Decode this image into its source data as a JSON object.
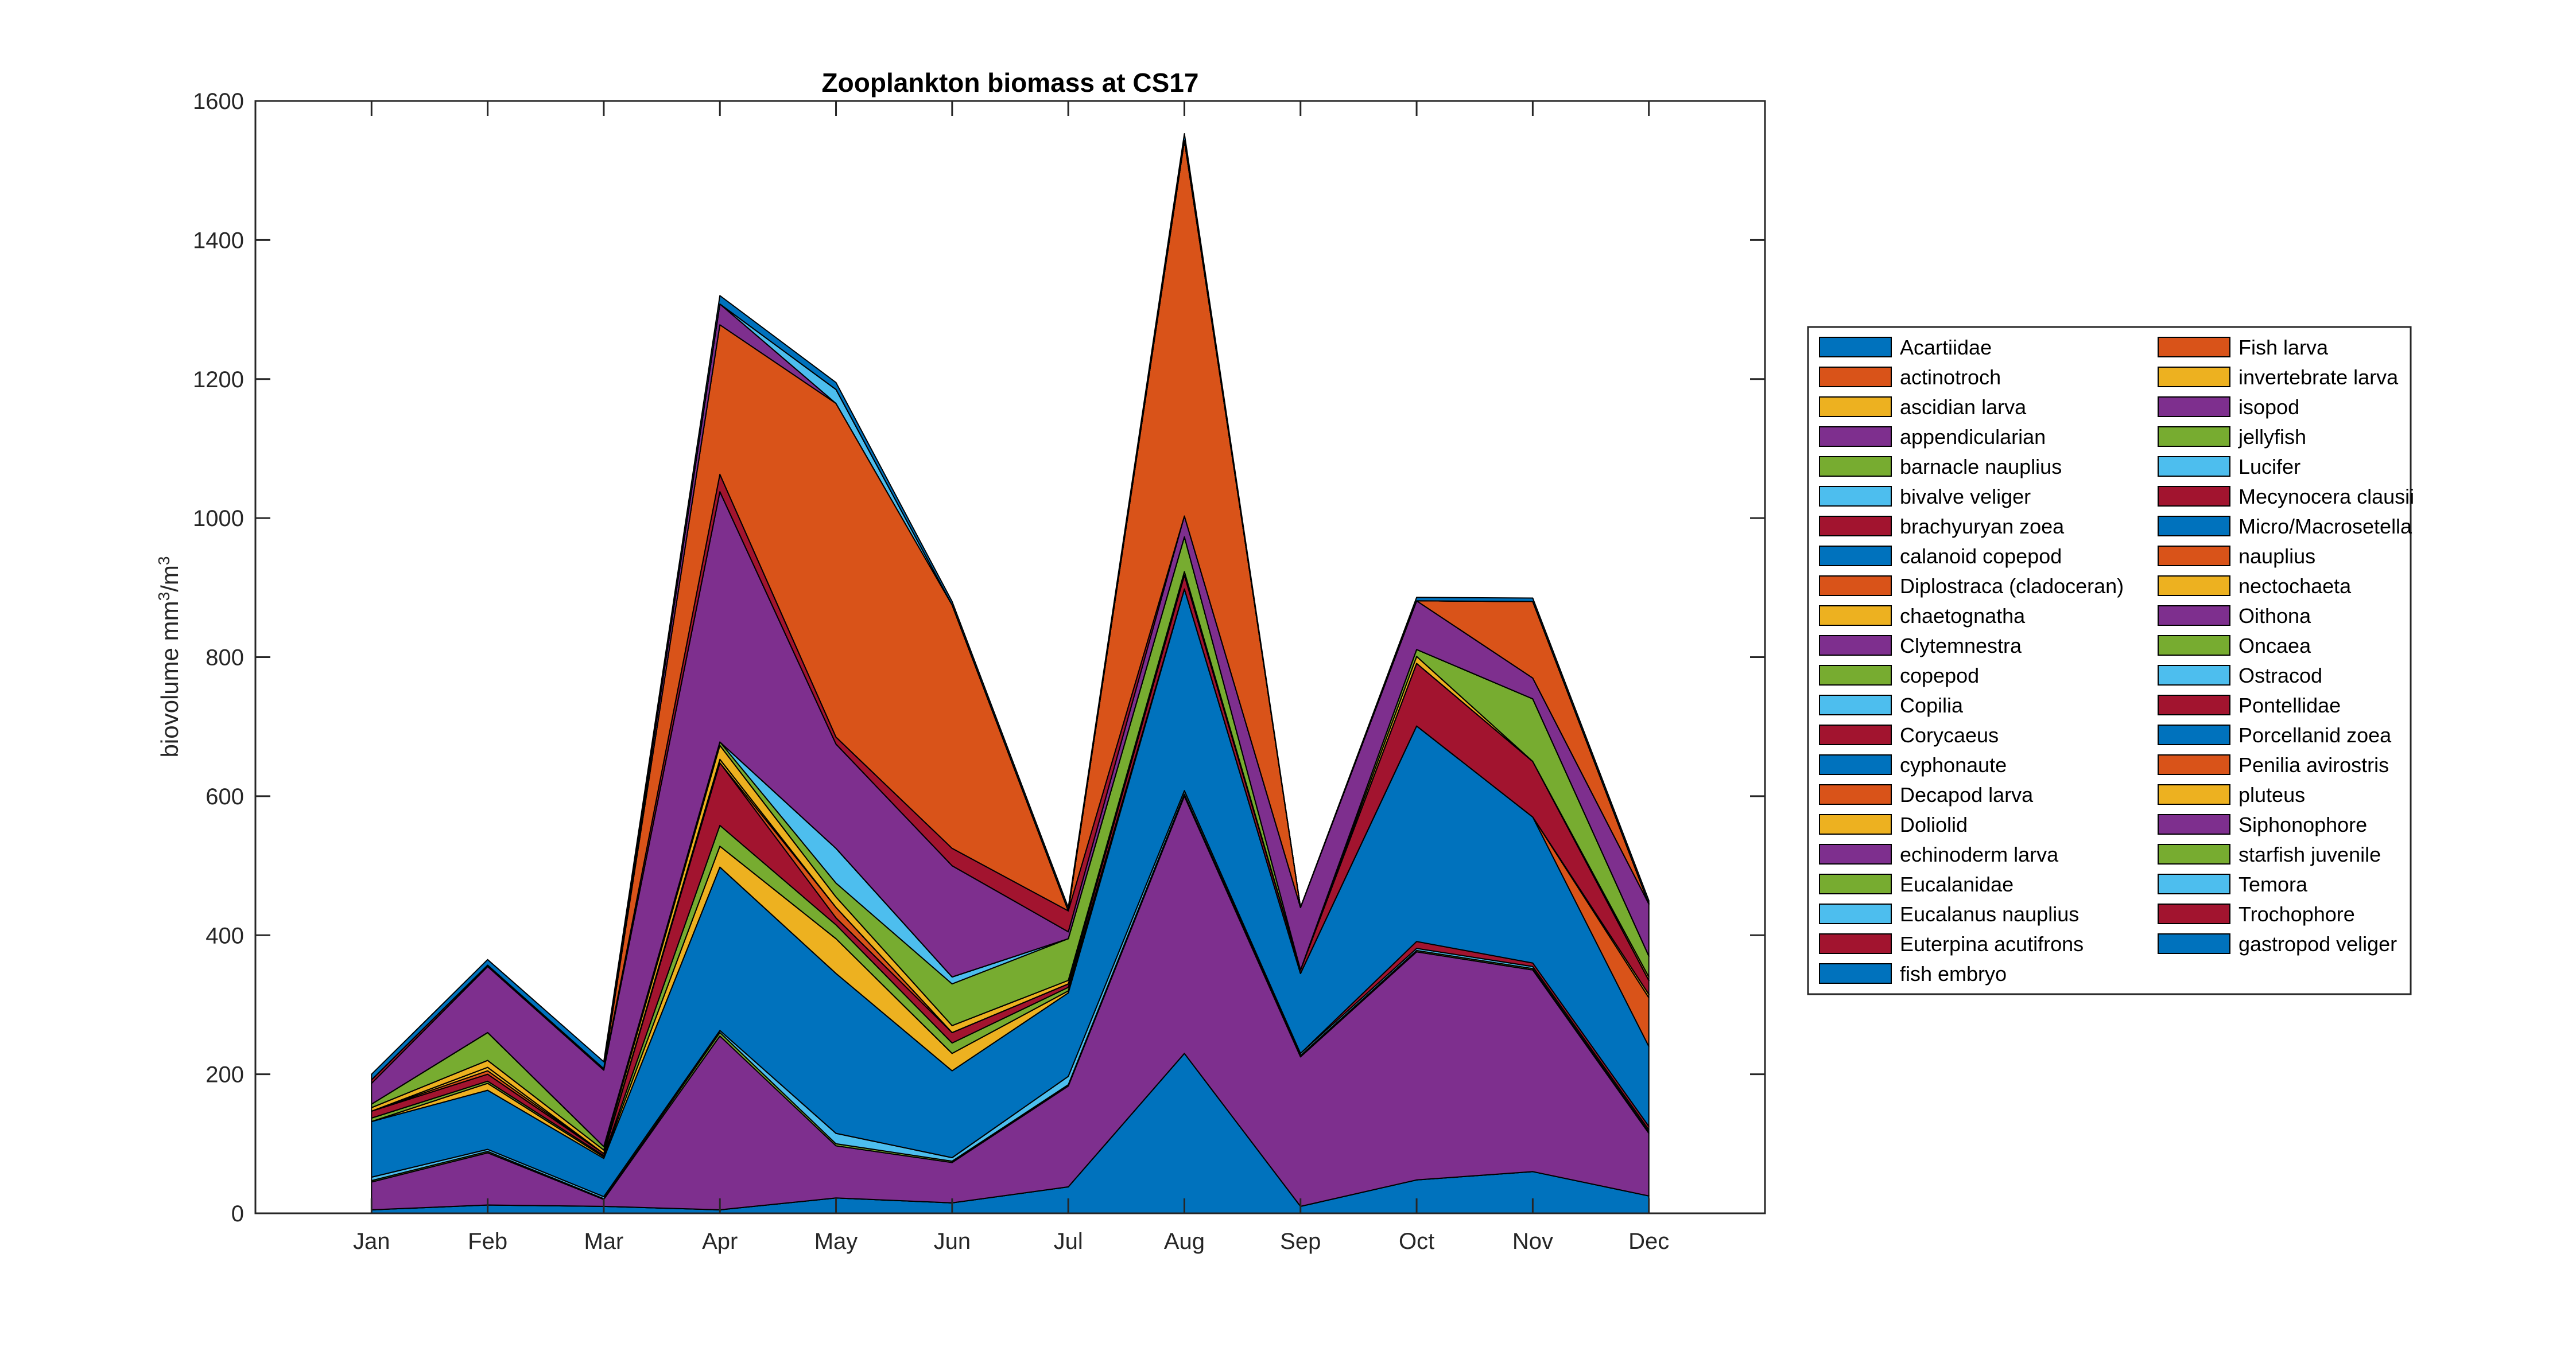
{
  "chart_data": {
    "type": "area",
    "title": "Zooplankton biomass at CS17",
    "xlabel": "",
    "ylabel": "biovolume mm³/m³",
    "ylabel_parts": {
      "base": "biovolume mm",
      "sup1": "3",
      "mid": "/m",
      "sup2": "3"
    },
    "ylim": [
      0,
      1600
    ],
    "xlim": [
      0,
      13
    ],
    "yticks": [
      0,
      200,
      400,
      600,
      800,
      1000,
      1200,
      1400,
      1600
    ],
    "ytick_labels": [
      "0",
      "200",
      "400",
      "600",
      "800",
      "1000",
      "1200",
      "1400",
      "1600"
    ],
    "grid": false,
    "legend_placement": "right, outside, two columns",
    "categories": [
      "Jan",
      "Feb",
      "Mar",
      "Apr",
      "May",
      "Jun",
      "Jul",
      "Aug",
      "Sep",
      "Oct",
      "Nov",
      "Dec"
    ],
    "stacked": true,
    "series": [
      {
        "name": "Acartiidae",
        "color": "#0072BD",
        "values": [
          5,
          12,
          10,
          5,
          22,
          15,
          38,
          230,
          10,
          48,
          60,
          25
        ]
      },
      {
        "name": "actinotroch",
        "color": "#D95319",
        "values": [
          0,
          0,
          0,
          0,
          0,
          0,
          0,
          0,
          0,
          0,
          0,
          0
        ]
      },
      {
        "name": "ascidian larva",
        "color": "#EDB120",
        "values": [
          0,
          0,
          0,
          0,
          0,
          0,
          0,
          0,
          0,
          0,
          0,
          0
        ]
      },
      {
        "name": "appendicularian",
        "color": "#7E2F8E",
        "values": [
          40,
          75,
          10,
          250,
          75,
          58,
          145,
          370,
          215,
          328,
          290,
          90
        ]
      },
      {
        "name": "barnacle nauplius",
        "color": "#77AC30",
        "values": [
          2,
          2,
          1,
          5,
          3,
          2,
          2,
          3,
          2,
          2,
          2,
          2
        ]
      },
      {
        "name": "bivalve veliger",
        "color": "#4DBEEE",
        "values": [
          5,
          3,
          3,
          3,
          15,
          5,
          12,
          5,
          3,
          3,
          3,
          3
        ]
      },
      {
        "name": "brachyuryan zoea",
        "color": "#A2142F",
        "values": [
          0,
          0,
          0,
          0,
          0,
          0,
          0,
          0,
          0,
          10,
          5,
          5
        ]
      },
      {
        "name": "calanoid copepod",
        "color": "#0072BD",
        "values": [
          80,
          85,
          55,
          235,
          230,
          125,
          120,
          290,
          115,
          310,
          210,
          115
        ]
      },
      {
        "name": "Diplostraca (cladoceran)",
        "color": "#D95319",
        "values": [
          0,
          0,
          0,
          0,
          0,
          0,
          0,
          0,
          0,
          0,
          0,
          70
        ]
      },
      {
        "name": "chaetognatha",
        "color": "#EDB120",
        "values": [
          0,
          10,
          2,
          30,
          50,
          25,
          3,
          0,
          0,
          0,
          0,
          5
        ]
      },
      {
        "name": "Clytemnestra",
        "color": "#7E2F8E",
        "values": [
          0,
          0,
          0,
          0,
          0,
          0,
          0,
          0,
          0,
          0,
          0,
          0
        ]
      },
      {
        "name": "copepod",
        "color": "#77AC30",
        "values": [
          5,
          3,
          2,
          30,
          20,
          15,
          5,
          0,
          0,
          0,
          0,
          0
        ]
      },
      {
        "name": "Copilia",
        "color": "#4DBEEE",
        "values": [
          0,
          0,
          0,
          0,
          0,
          0,
          0,
          0,
          0,
          0,
          0,
          0
        ]
      },
      {
        "name": "Corycaeus",
        "color": "#A2142F",
        "values": [
          10,
          10,
          3,
          90,
          10,
          15,
          5,
          20,
          5,
          90,
          80,
          20
        ]
      },
      {
        "name": "cyphonaute",
        "color": "#0072BD",
        "values": [
          0,
          0,
          0,
          0,
          0,
          0,
          0,
          0,
          0,
          0,
          0,
          0
        ]
      },
      {
        "name": "Decapod larva",
        "color": "#D95319",
        "values": [
          0,
          5,
          0,
          0,
          15,
          0,
          0,
          0,
          0,
          0,
          0,
          0
        ]
      },
      {
        "name": "Doliolid",
        "color": "#EDB120",
        "values": [
          0,
          5,
          0,
          5,
          0,
          0,
          0,
          0,
          0,
          0,
          0,
          0
        ]
      },
      {
        "name": "echinoderm larva",
        "color": "#7E2F8E",
        "values": [
          0,
          0,
          0,
          0,
          0,
          0,
          0,
          0,
          0,
          0,
          0,
          0
        ]
      },
      {
        "name": "Eucalanidae",
        "color": "#77AC30",
        "values": [
          0,
          0,
          0,
          0,
          0,
          0,
          0,
          0,
          0,
          0,
          0,
          0
        ]
      },
      {
        "name": "Eucalanus nauplius",
        "color": "#4DBEEE",
        "values": [
          0,
          0,
          0,
          0,
          0,
          0,
          0,
          0,
          0,
          0,
          0,
          0
        ]
      },
      {
        "name": "Euterpina acutifrons",
        "color": "#A2142F",
        "values": [
          0,
          0,
          0,
          0,
          0,
          0,
          0,
          0,
          0,
          0,
          0,
          0
        ]
      },
      {
        "name": "fish embryo",
        "color": "#0072BD",
        "values": [
          0,
          0,
          0,
          0,
          0,
          0,
          0,
          0,
          0,
          0,
          0,
          0
        ]
      },
      {
        "name": "Fish larva",
        "color": "#D95319",
        "values": [
          0,
          0,
          0,
          0,
          0,
          0,
          0,
          0,
          0,
          0,
          0,
          0
        ]
      },
      {
        "name": "invertebrate larva",
        "color": "#EDB120",
        "values": [
          5,
          10,
          5,
          20,
          15,
          10,
          5,
          5,
          0,
          10,
          0,
          5
        ]
      },
      {
        "name": "isopod",
        "color": "#7E2F8E",
        "values": [
          0,
          0,
          0,
          0,
          0,
          0,
          0,
          0,
          0,
          0,
          0,
          0
        ]
      },
      {
        "name": "jellyfish",
        "color": "#77AC30",
        "values": [
          5,
          40,
          5,
          5,
          20,
          60,
          60,
          50,
          0,
          10,
          90,
          30
        ]
      },
      {
        "name": "Lucifer",
        "color": "#4DBEEE",
        "values": [
          0,
          0,
          0,
          0,
          50,
          10,
          0,
          0,
          0,
          0,
          0,
          0
        ]
      },
      {
        "name": "Mecynocera clausii",
        "color": "#A2142F",
        "values": [
          0,
          0,
          0,
          0,
          0,
          0,
          0,
          0,
          0,
          0,
          0,
          0
        ]
      },
      {
        "name": "Micro/Macrosetella",
        "color": "#0072BD",
        "values": [
          0,
          0,
          0,
          0,
          0,
          0,
          0,
          0,
          0,
          0,
          0,
          0
        ]
      },
      {
        "name": "nauplius",
        "color": "#D95319",
        "values": [
          0,
          0,
          0,
          0,
          0,
          0,
          0,
          0,
          0,
          0,
          0,
          0
        ]
      },
      {
        "name": "nectochaeta",
        "color": "#EDB120",
        "values": [
          0,
          0,
          0,
          0,
          0,
          0,
          0,
          0,
          0,
          0,
          0,
          0
        ]
      },
      {
        "name": "Oithona",
        "color": "#7E2F8E",
        "values": [
          30,
          95,
          110,
          360,
          150,
          160,
          10,
          30,
          90,
          70,
          30,
          75
        ]
      },
      {
        "name": "Oncaea",
        "color": "#77AC30",
        "values": [
          0,
          0,
          0,
          0,
          0,
          0,
          0,
          0,
          0,
          0,
          0,
          0
        ]
      },
      {
        "name": "Ostracod",
        "color": "#4DBEEE",
        "values": [
          0,
          0,
          0,
          0,
          0,
          0,
          0,
          0,
          0,
          0,
          0,
          0
        ]
      },
      {
        "name": "Pontellidae",
        "color": "#A2142F",
        "values": [
          5,
          2,
          2,
          25,
          10,
          25,
          30,
          0,
          0,
          0,
          0,
          0
        ]
      },
      {
        "name": "Porcellanid zoea",
        "color": "#0072BD",
        "values": [
          0,
          0,
          0,
          0,
          0,
          0,
          0,
          0,
          0,
          0,
          0,
          0
        ]
      },
      {
        "name": "Penilia avirostris",
        "color": "#D95319",
        "values": [
          0,
          0,
          0,
          215,
          480,
          350,
          0,
          540,
          0,
          0,
          110,
          0
        ]
      },
      {
        "name": "pluteus",
        "color": "#EDB120",
        "values": [
          0,
          0,
          0,
          0,
          0,
          0,
          0,
          0,
          0,
          0,
          0,
          0
        ]
      },
      {
        "name": "Siphonophore",
        "color": "#7E2F8E",
        "values": [
          0,
          0,
          0,
          30,
          0,
          0,
          0,
          0,
          0,
          0,
          0,
          0
        ]
      },
      {
        "name": "starfish juvenile",
        "color": "#77AC30",
        "values": [
          0,
          0,
          0,
          0,
          0,
          0,
          0,
          0,
          0,
          0,
          0,
          0
        ]
      },
      {
        "name": "Temora",
        "color": "#4DBEEE",
        "values": [
          0,
          0,
          0,
          0,
          20,
          0,
          0,
          0,
          0,
          0,
          0,
          0
        ]
      },
      {
        "name": "Trochophore",
        "color": "#A2142F",
        "values": [
          0,
          0,
          0,
          0,
          0,
          0,
          0,
          0,
          0,
          0,
          0,
          0
        ]
      },
      {
        "name": "gastropod veliger",
        "color": "#0072BD",
        "values": [
          8,
          8,
          10,
          12,
          10,
          5,
          5,
          10,
          0,
          5,
          5,
          5
        ]
      }
    ]
  }
}
